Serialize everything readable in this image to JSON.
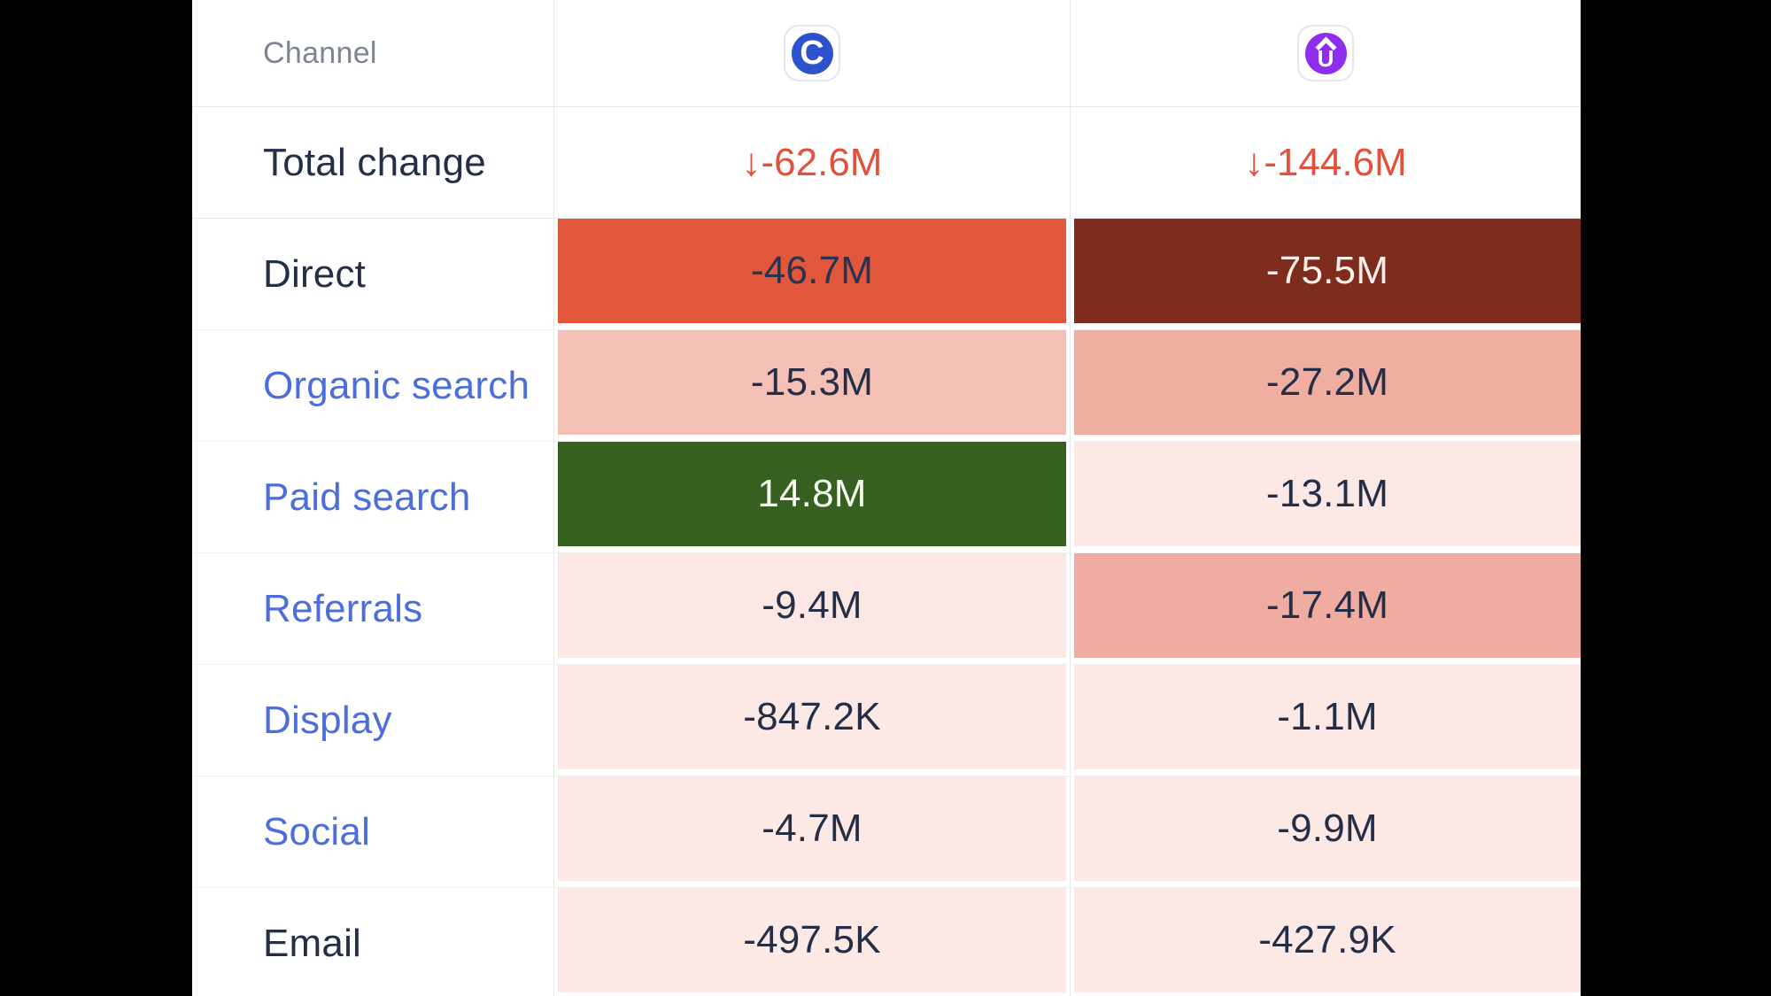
{
  "colors": {
    "letterbox": "#000000",
    "content_background": "#ffffff",
    "divider": "#e8eaed",
    "channel_header_text": "#7d8591",
    "label_text": "#242f47",
    "link_text": "#4c6edd",
    "total_change_text": "#e2513c",
    "brand_c_circle": "#2c52ce",
    "brand_u_circle": "#8f2def",
    "heat_strong_negative": "#e2573b",
    "heat_severe_negative": "#7e2c1d",
    "heat_medium_negative": "#f0aea1",
    "heat_light_negative": "#fbe7e3",
    "heat_positive": "#35601f"
  },
  "header": {
    "channel_label": "Channel",
    "columns": [
      {
        "icon": "brand-c-icon",
        "letter": "C",
        "circle_color": "#2c52ce"
      },
      {
        "icon": "brand-u-icon",
        "letter": "U",
        "circle_color": "#8f2def",
        "has_caret": true
      }
    ]
  },
  "total_row": {
    "label": "Total change",
    "values": [
      {
        "text": "↓-62.6M"
      },
      {
        "text": "↓-144.6M"
      }
    ]
  },
  "rows": [
    {
      "label": "Direct",
      "is_link": false,
      "cells": [
        {
          "text": "-46.7M",
          "bg": "#e2573b",
          "fg": "#2a3350"
        },
        {
          "text": "-75.5M",
          "bg": "#7e2c1d",
          "fg": "#fdf0ea"
        }
      ]
    },
    {
      "label": "Organic search",
      "is_link": true,
      "cells": [
        {
          "text": "-15.3M",
          "bg": "#f4bfb4",
          "fg": "#242f47"
        },
        {
          "text": "-27.2M",
          "bg": "#f0aea1",
          "fg": "#242f47"
        }
      ]
    },
    {
      "label": "Paid search",
      "is_link": true,
      "cells": [
        {
          "text": "14.8M",
          "bg": "#35601f",
          "fg": "#f7fbf2"
        },
        {
          "text": "-13.1M",
          "bg": "#fce9e6",
          "fg": "#242f47"
        }
      ]
    },
    {
      "label": "Referrals",
      "is_link": true,
      "cells": [
        {
          "text": "-9.4M",
          "bg": "#fbe7e3",
          "fg": "#242f47"
        },
        {
          "text": "-17.4M",
          "bg": "#f0aca0",
          "fg": "#242f47"
        }
      ]
    },
    {
      "label": "Display",
      "is_link": true,
      "cells": [
        {
          "text": "-847.2K",
          "bg": "#fce9e6",
          "fg": "#242f47"
        },
        {
          "text": "-1.1M",
          "bg": "#fce9e6",
          "fg": "#242f47"
        }
      ]
    },
    {
      "label": "Social",
      "is_link": true,
      "cells": [
        {
          "text": "-4.7M",
          "bg": "#fce9e6",
          "fg": "#242f47"
        },
        {
          "text": "-9.9M",
          "bg": "#fce9e6",
          "fg": "#242f47"
        }
      ]
    },
    {
      "label": "Email",
      "is_link": false,
      "cells": [
        {
          "text": "-497.5K",
          "bg": "#fce9e6",
          "fg": "#242f47"
        },
        {
          "text": "-427.9K",
          "bg": "#fce9e6",
          "fg": "#242f47"
        }
      ]
    }
  ],
  "chart_data": {
    "type": "table",
    "row_header": "Channel",
    "columns": [
      "C",
      "Û"
    ],
    "row_labels": [
      "Total change",
      "Direct",
      "Organic search",
      "Paid search",
      "Referrals",
      "Display",
      "Social",
      "Email"
    ],
    "values_text": [
      [
        "↓-62.6M",
        "↓-144.6M"
      ],
      [
        "-46.7M",
        "-75.5M"
      ],
      [
        "-15.3M",
        "-27.2M"
      ],
      [
        "14.8M",
        "-13.1M"
      ],
      [
        "-9.4M",
        "-17.4M"
      ],
      [
        "-847.2K",
        "-1.1M"
      ],
      [
        "-4.7M",
        "-9.9M"
      ],
      [
        "-497.5K",
        "-427.9K"
      ]
    ],
    "values_numeric": [
      [
        -62600000,
        -144600000
      ],
      [
        -46700000,
        -75500000
      ],
      [
        -15300000,
        -27200000
      ],
      [
        14800000,
        -13100000
      ],
      [
        -9400000,
        -17400000
      ],
      [
        -847200,
        -1100000
      ],
      [
        -4700000,
        -9900000
      ],
      [
        -497500,
        -427900
      ]
    ]
  }
}
